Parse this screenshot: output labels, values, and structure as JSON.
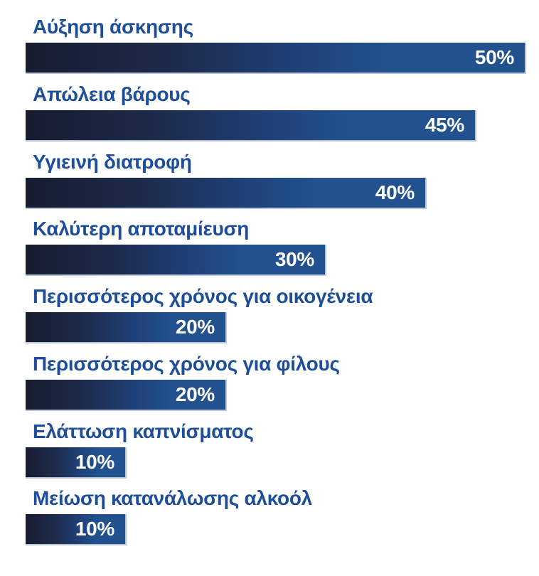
{
  "chart_data": {
    "type": "bar",
    "orientation": "horizontal",
    "title": "",
    "xlabel": "",
    "ylabel": "",
    "xlim": [
      0,
      50
    ],
    "grid": false,
    "legend": false,
    "categories": [
      "Αύξηση άσκησης",
      "Απώλεια βάρους",
      "Υγιεινή διατροφή",
      "Καλύτερη αποταμίευση",
      "Περισσότερος χρόνος για οικογένεια",
      "Περισσότερος χρόνος για φίλους",
      "Ελάττωση καπνίσματος",
      "Μείωση κατανάλωσης αλκοόλ"
    ],
    "values": [
      50,
      45,
      40,
      30,
      20,
      20,
      10,
      10
    ],
    "value_labels": [
      "50%",
      "45%",
      "40%",
      "30%",
      "20%",
      "20%",
      "10%",
      "10%"
    ],
    "value_label_position": "inside-right",
    "category_label_position": "above-bar"
  },
  "colors": {
    "background": "#ffffff",
    "category_label": "#1e4e99",
    "value_label": "#ffffff",
    "bar_gradient_start": "#171c2f",
    "bar_gradient_mid": "#1f4179",
    "bar_gradient_end": "#21518e",
    "bar_edge_highlight": "#b9c5d8"
  }
}
